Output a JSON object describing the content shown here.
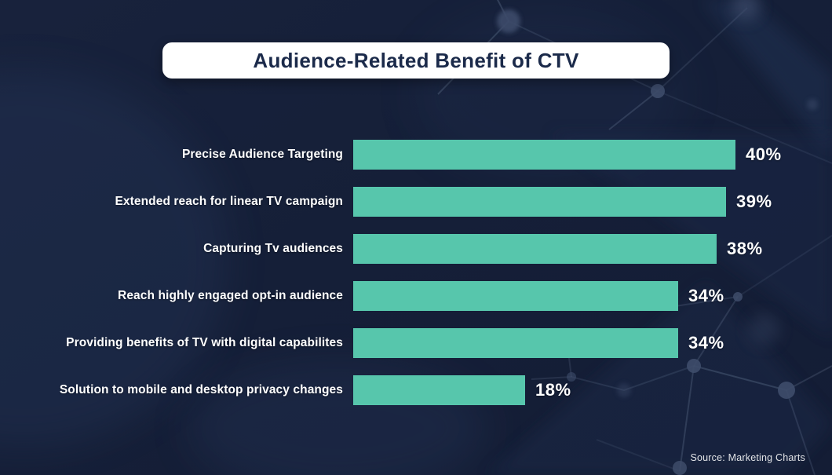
{
  "title": "Audience-Related Benefit of CTV",
  "source": "Source: Marketing Charts",
  "colors": {
    "background": "#161F38",
    "background_light": "#27395C",
    "bar": "#57C6AC",
    "title_text": "#1B2A4A",
    "label_text": "#FFFFFF",
    "network_line": "#93A7C4",
    "network_node": "#3E4C6A"
  },
  "chart_data": {
    "type": "bar",
    "orientation": "horizontal",
    "title": "Audience-Related Benefit of CTV",
    "categories": [
      "Precise Audience Targeting",
      "Extended reach for linear TV campaign",
      "Capturing Tv audiences",
      "Reach highly engaged opt-in audience",
      "Providing benefits of TV with digital capabilites",
      "Solution to mobile and desktop privacy changes"
    ],
    "values": [
      40,
      39,
      38,
      34,
      34,
      18
    ],
    "value_labels": [
      "40%",
      "39%",
      "38%",
      "34%",
      "34%",
      "18%"
    ],
    "unit": "%",
    "xlim": [
      0,
      40
    ],
    "grid": false,
    "legend": false,
    "source": "Source: Marketing Charts"
  }
}
